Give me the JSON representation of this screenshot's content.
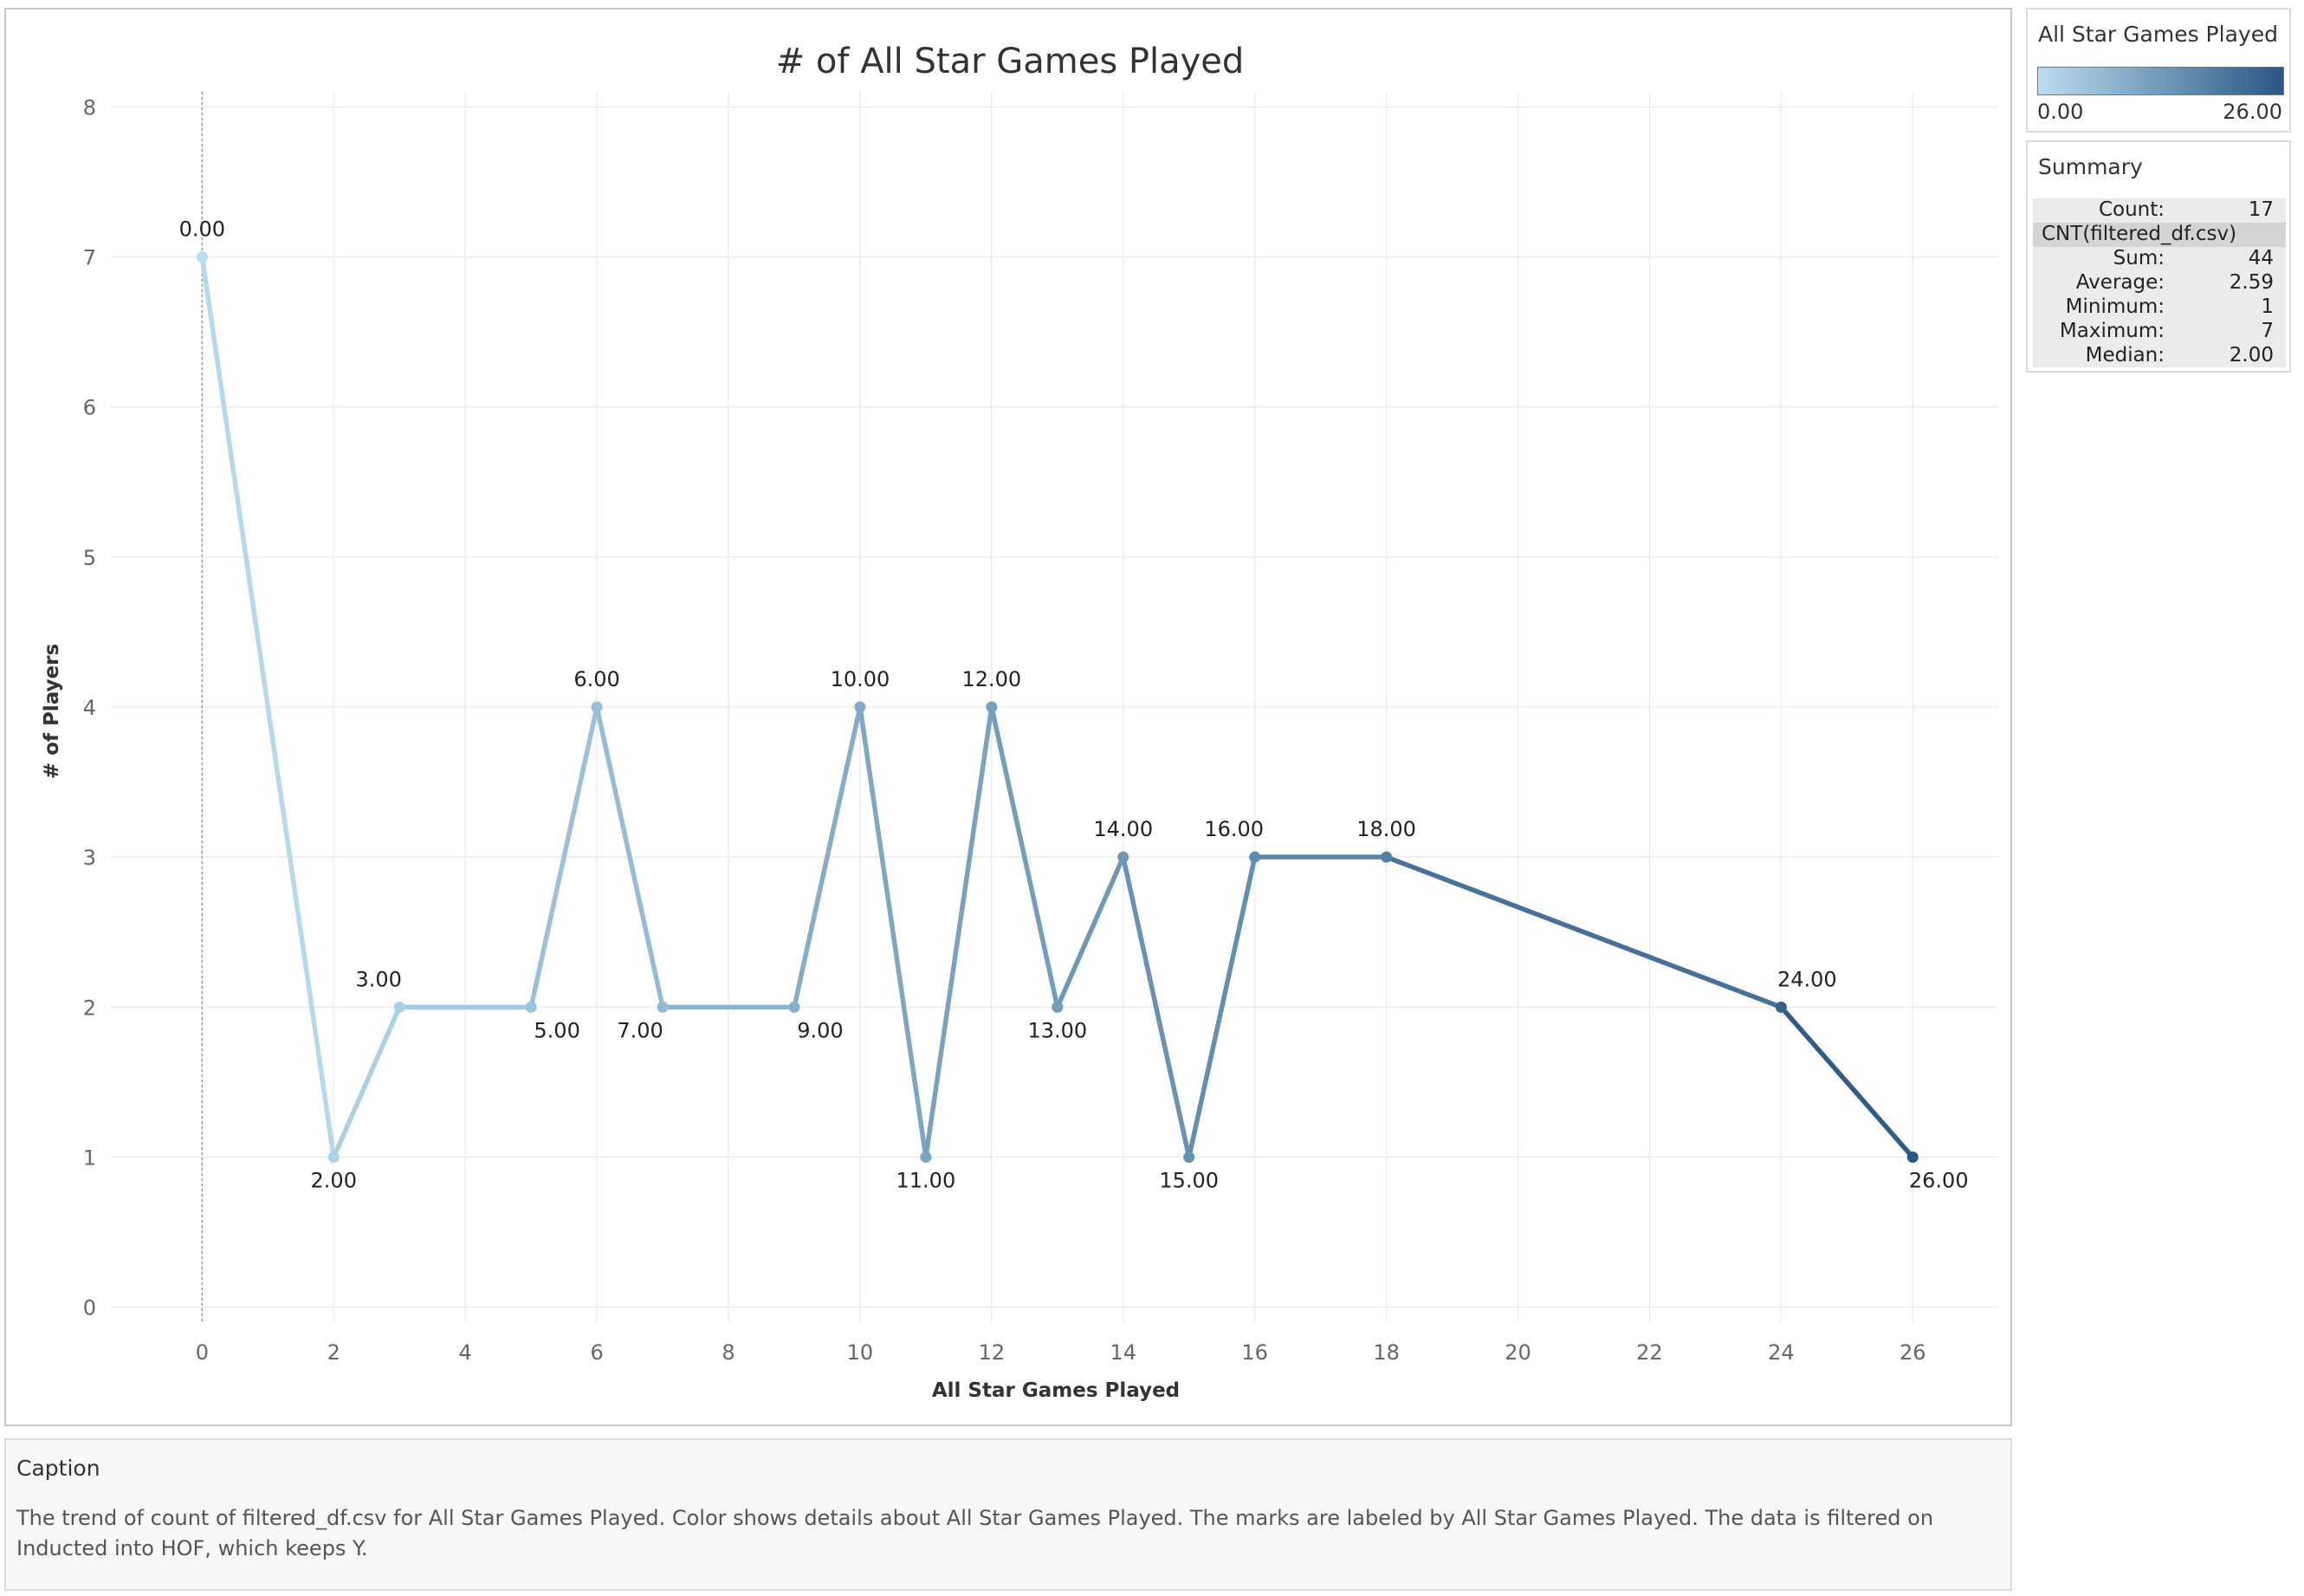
{
  "legend": {
    "title": "All Star Games Played",
    "min_label": "0.00",
    "max_label": "26.00",
    "color_light": "#b9ddf1",
    "color_dark": "#2a5783"
  },
  "summary": {
    "title": "Summary",
    "field": "CNT(filtered_df.csv)",
    "rows": [
      {
        "label": "Count:",
        "value": "17"
      },
      {
        "label": "Sum:",
        "value": "44"
      },
      {
        "label": "Average:",
        "value": "2.59"
      },
      {
        "label": "Minimum:",
        "value": "1"
      },
      {
        "label": "Maximum:",
        "value": "7"
      },
      {
        "label": "Median:",
        "value": "2.00"
      }
    ]
  },
  "caption": {
    "title": "Caption",
    "text": "The trend of count of filtered_df.csv for All Star Games Played.  Color shows details about All Star Games Played.  The marks are labeled by All Star Games Played. The data is filtered on Inducted into HOF, which keeps Y."
  },
  "chart_data": {
    "type": "line",
    "title": "# of All Star Games Played",
    "xlabel": "All Star Games Played",
    "ylabel": "# of Players",
    "xlim": [
      -1.4,
      27.3
    ],
    "ylim": [
      -0.1,
      8.1
    ],
    "xticks": [
      0,
      2,
      4,
      6,
      8,
      10,
      12,
      14,
      16,
      18,
      20,
      22,
      24,
      26
    ],
    "yticks": [
      0,
      1,
      2,
      3,
      4,
      5,
      6,
      7,
      8
    ],
    "grid": true,
    "color_encoding": "All Star Games Played",
    "points": [
      {
        "x": 0,
        "y": 7,
        "label": "0.00",
        "label_pos": "above"
      },
      {
        "x": 2,
        "y": 1,
        "label": "2.00",
        "label_pos": "below"
      },
      {
        "x": 3,
        "y": 2,
        "label": "3.00",
        "label_pos": "above-left"
      },
      {
        "x": 5,
        "y": 2,
        "label": "5.00",
        "label_pos": "below-right"
      },
      {
        "x": 6,
        "y": 4,
        "label": "6.00",
        "label_pos": "above"
      },
      {
        "x": 7,
        "y": 2,
        "label": "7.00",
        "label_pos": "below-left"
      },
      {
        "x": 9,
        "y": 2,
        "label": "9.00",
        "label_pos": "below-right"
      },
      {
        "x": 10,
        "y": 4,
        "label": "10.00",
        "label_pos": "above"
      },
      {
        "x": 11,
        "y": 1,
        "label": "11.00",
        "label_pos": "below"
      },
      {
        "x": 12,
        "y": 4,
        "label": "12.00",
        "label_pos": "above"
      },
      {
        "x": 13,
        "y": 2,
        "label": "13.00",
        "label_pos": "below"
      },
      {
        "x": 14,
        "y": 3,
        "label": "14.00",
        "label_pos": "above"
      },
      {
        "x": 15,
        "y": 1,
        "label": "15.00",
        "label_pos": "below"
      },
      {
        "x": 16,
        "y": 3,
        "label": "16.00",
        "label_pos": "above-left"
      },
      {
        "x": 18,
        "y": 3,
        "label": "18.00",
        "label_pos": "above"
      },
      {
        "x": 24,
        "y": 2,
        "label": "24.00",
        "label_pos": "above-right"
      },
      {
        "x": 26,
        "y": 1,
        "label": "26.00",
        "label_pos": "below-right"
      }
    ]
  }
}
